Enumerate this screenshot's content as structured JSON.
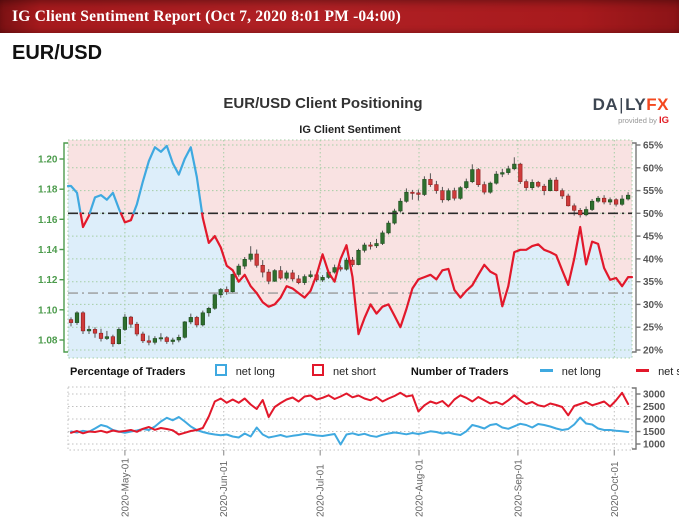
{
  "header": {
    "title": "IG Client Sentiment Report (Oct 7, 2020 8:01 PM -04:00)"
  },
  "instrument": "EUR/USD",
  "chart": {
    "title": "EUR/USD Client Positioning",
    "subtitle": "IG Client Sentiment"
  },
  "logo": {
    "part1": "DA",
    "bar": "|",
    "part2": "LY",
    "part3": "FX",
    "provided": "provided by",
    "ig": "IG"
  },
  "legend": {
    "group1_label": "Percentage of Traders",
    "net_long": "net long",
    "net_short": "net short",
    "group2_label": "Number of Traders",
    "net_long2": "net long",
    "net_short2": "net short"
  },
  "colors": {
    "header_bg": "#a8191c",
    "net_long_blue": "#3fa9e0",
    "net_short_red": "#e2182b",
    "candle_up": "#2e6f2e",
    "candle_down": "#cf3b3b",
    "bg_above": "#f9e2e2",
    "bg_below": "#ddeefa",
    "grid_green": "#a5cda5",
    "grid_gray": "#c0c0c0",
    "price_label_green": "#4c9b4c",
    "axis_gray": "#555555",
    "logo_orange": "#f4481e",
    "logo_dark": "#3d4652",
    "ig_red": "#e21d25"
  },
  "chart_data": [
    {
      "type": "candlestick+line",
      "title": "IG Client Sentiment",
      "x": {
        "labels": [
          "2020-May-01",
          "2020-Jun-01",
          "2020-Jul-01",
          "2020-Aug-01",
          "2020-Sep-01",
          "2020-Oct-01"
        ],
        "tick_indices": [
          9.0,
          25.5,
          41.6,
          58.1,
          74.6,
          90.7
        ]
      },
      "y_left": {
        "name": "EUR/USD price",
        "ticks": [
          "1.08",
          "1.10",
          "1.12",
          "1.14",
          "1.16",
          "1.18",
          "1.20"
        ]
      },
      "y_right": {
        "name": "Percentage of traders",
        "unit": "%",
        "range": [
          20,
          65
        ],
        "ticks": [
          20,
          25,
          30,
          35,
          40,
          45,
          50,
          55,
          60,
          65
        ]
      },
      "reference_lines": [
        {
          "value": 50,
          "color": "#2b2b2b",
          "name": "50-percent-level"
        },
        {
          "value": 32.5,
          "color": "#9a9a9a",
          "name": "current-sentiment-marker"
        }
      ],
      "background": {
        "above_line": "net-short majority shaded pink",
        "below_line": "net-long shaded blue"
      },
      "series": [
        {
          "name": "EUR/USD daily candles",
          "type": "candlestick",
          "ohlc": [
            [
              1.0935,
              1.095,
              1.089,
              1.0915
            ],
            [
              1.0915,
              1.099,
              1.09,
              1.098
            ],
            [
              1.098,
              1.099,
              1.084,
              1.086
            ],
            [
              1.086,
              1.0895,
              1.084,
              1.087
            ],
            [
              1.087,
              1.0885,
              1.0815,
              1.0845
            ],
            [
              1.0845,
              1.0875,
              1.079,
              1.081
            ],
            [
              1.081,
              1.086,
              1.08,
              1.0822
            ],
            [
              1.0822,
              1.0835,
              1.0755,
              1.0775
            ],
            [
              1.0775,
              1.0885,
              1.077,
              1.087
            ],
            [
              1.087,
              1.0972,
              1.086,
              1.0952
            ],
            [
              1.0952,
              1.096,
              1.088,
              1.0905
            ],
            [
              1.0905,
              1.092,
              1.0825,
              1.084
            ],
            [
              1.084,
              1.0855,
              1.078,
              1.0795
            ],
            [
              1.0795,
              1.083,
              1.0765,
              1.0785
            ],
            [
              1.0785,
              1.0825,
              1.077,
              1.081
            ],
            [
              1.081,
              1.0845,
              1.079,
              1.0815
            ],
            [
              1.0815,
              1.0825,
              1.0775,
              1.079
            ],
            [
              1.079,
              1.0815,
              1.077,
              1.08
            ],
            [
              1.08,
              1.0835,
              1.0785,
              1.0818
            ],
            [
              1.0818,
              1.0925,
              1.081,
              1.092
            ],
            [
              1.092,
              1.0975,
              1.0905,
              1.095
            ],
            [
              1.095,
              1.096,
              1.0885,
              1.09
            ],
            [
              1.09,
              1.0995,
              1.089,
              1.098
            ],
            [
              1.098,
              1.102,
              1.0955,
              1.101
            ],
            [
              1.101,
              1.111,
              1.1,
              1.11
            ],
            [
              1.11,
              1.1145,
              1.108,
              1.1135
            ],
            [
              1.1135,
              1.1155,
              1.11,
              1.112
            ],
            [
              1.112,
              1.124,
              1.1115,
              1.1235
            ],
            [
              1.1235,
              1.1305,
              1.122,
              1.129
            ],
            [
              1.129,
              1.135,
              1.127,
              1.1335
            ],
            [
              1.1335,
              1.1422,
              1.132,
              1.137
            ],
            [
              1.137,
              1.14,
              1.128,
              1.1295
            ],
            [
              1.1295,
              1.133,
              1.1215,
              1.125
            ],
            [
              1.125,
              1.127,
              1.117,
              1.119
            ],
            [
              1.119,
              1.127,
              1.1185,
              1.126
            ],
            [
              1.126,
              1.129,
              1.12,
              1.121
            ],
            [
              1.121,
              1.126,
              1.1195,
              1.1245
            ],
            [
              1.1245,
              1.1265,
              1.119,
              1.1205
            ],
            [
              1.1205,
              1.123,
              1.117,
              1.118
            ],
            [
              1.118,
              1.1235,
              1.1165,
              1.122
            ],
            [
              1.122,
              1.126,
              1.121,
              1.1232
            ],
            [
              1.1232,
              1.124,
              1.1185,
              1.1198
            ],
            [
              1.1198,
              1.123,
              1.1185,
              1.1215
            ],
            [
              1.1215,
              1.1265,
              1.1205,
              1.125
            ],
            [
              1.125,
              1.13,
              1.124,
              1.128
            ],
            [
              1.128,
              1.1295,
              1.1255,
              1.127
            ],
            [
              1.127,
              1.1345,
              1.126,
              1.133
            ],
            [
              1.133,
              1.135,
              1.1285,
              1.13
            ],
            [
              1.13,
              1.1405,
              1.1295,
              1.1395
            ],
            [
              1.1395,
              1.1445,
              1.138,
              1.143
            ],
            [
              1.143,
              1.145,
              1.14,
              1.1425
            ],
            [
              1.1425,
              1.147,
              1.141,
              1.144
            ],
            [
              1.144,
              1.1525,
              1.143,
              1.151
            ],
            [
              1.151,
              1.159,
              1.15,
              1.1575
            ],
            [
              1.1575,
              1.167,
              1.1565,
              1.1655
            ],
            [
              1.1655,
              1.174,
              1.1645,
              1.172
            ],
            [
              1.172,
              1.1805,
              1.171,
              1.178
            ],
            [
              1.178,
              1.1795,
              1.173,
              1.1775
            ],
            [
              1.1775,
              1.1797,
              1.1725,
              1.1765
            ],
            [
              1.1765,
              1.1885,
              1.1755,
              1.1865
            ],
            [
              1.1865,
              1.1905,
              1.1815,
              1.183
            ],
            [
              1.183,
              1.1855,
              1.177,
              1.179
            ],
            [
              1.179,
              1.1815,
              1.171,
              1.173
            ],
            [
              1.173,
              1.1805,
              1.172,
              1.179
            ],
            [
              1.179,
              1.181,
              1.1725,
              1.174
            ],
            [
              1.174,
              1.182,
              1.173,
              1.181
            ],
            [
              1.181,
              1.187,
              1.18,
              1.185
            ],
            [
              1.185,
              1.1965,
              1.184,
              1.193
            ],
            [
              1.193,
              1.194,
              1.1815,
              1.183
            ],
            [
              1.183,
              1.185,
              1.1765,
              1.178
            ],
            [
              1.178,
              1.185,
              1.177,
              1.184
            ],
            [
              1.184,
              1.192,
              1.183,
              1.19
            ],
            [
              1.19,
              1.1935,
              1.188,
              1.191
            ],
            [
              1.191,
              1.1955,
              1.1895,
              1.1935
            ],
            [
              1.1935,
              1.2011,
              1.1925,
              1.1966
            ],
            [
              1.1966,
              1.1975,
              1.1835,
              1.185
            ],
            [
              1.185,
              1.1865,
              1.179,
              1.181
            ],
            [
              1.181,
              1.1865,
              1.1795,
              1.1845
            ],
            [
              1.1845,
              1.1855,
              1.181,
              1.182
            ],
            [
              1.182,
              1.1835,
              1.176,
              1.179
            ],
            [
              1.179,
              1.1875,
              1.1785,
              1.186
            ],
            [
              1.186,
              1.188,
              1.1785,
              1.179
            ],
            [
              1.179,
              1.1805,
              1.1735,
              1.1755
            ],
            [
              1.1755,
              1.177,
              1.1685,
              1.169
            ],
            [
              1.169,
              1.1705,
              1.1625,
              1.166
            ],
            [
              1.166,
              1.1675,
              1.1612,
              1.163
            ],
            [
              1.163,
              1.1685,
              1.162,
              1.1665
            ],
            [
              1.1665,
              1.1735,
              1.1655,
              1.172
            ],
            [
              1.172,
              1.1755,
              1.171,
              1.174
            ],
            [
              1.174,
              1.176,
              1.17,
              1.1715
            ],
            [
              1.1715,
              1.1745,
              1.1695,
              1.173
            ],
            [
              1.173,
              1.174,
              1.1685,
              1.17
            ],
            [
              1.17,
              1.176,
              1.169,
              1.1735
            ],
            [
              1.1735,
              1.178,
              1.1725,
              1.176
            ]
          ]
        },
        {
          "name": "net long percentage of traders",
          "type": "line",
          "color_rule": "blue when >= 50, red when < 50",
          "values": [
            56,
            54.5,
            47,
            49.5,
            53.5,
            54,
            53,
            54.5,
            51,
            48,
            48.5,
            52,
            57,
            61.5,
            64.5,
            63.5,
            64.8,
            61,
            58.5,
            62,
            64.5,
            58,
            49,
            43.5,
            45,
            42.5,
            38.5,
            37.5,
            35,
            36.5,
            34,
            32.5,
            30.5,
            29.5,
            30,
            31.5,
            34,
            33.5,
            32.5,
            31.5,
            33,
            36.5,
            41,
            37,
            35,
            40,
            43,
            36,
            23.5,
            27,
            30,
            28,
            29.5,
            30,
            27.5,
            25,
            29,
            33.5,
            35.5,
            36,
            36.5,
            35.5,
            37.5,
            37.8,
            33.2,
            31.5,
            33,
            34.2,
            36.5,
            38.7,
            37.2,
            36.5,
            29.6,
            34,
            41.5,
            42,
            42,
            42.8,
            43.2,
            42,
            41.5,
            40.8,
            37.5,
            34.3,
            40,
            47,
            38.8,
            43.8,
            43.3,
            38,
            35.4,
            35.8,
            34,
            36
          ]
        }
      ]
    },
    {
      "type": "line",
      "name": "Number of Traders",
      "y_right": {
        "ticks": [
          1000,
          1500,
          2000,
          2500,
          3000
        ],
        "range": [
          840,
          3240
        ]
      },
      "series": [
        {
          "name": "net long",
          "color_key": "net_long_blue",
          "values": [
            1500,
            1460,
            1530,
            1490,
            1620,
            1760,
            1700,
            1560,
            1500,
            1450,
            1500,
            1540,
            1600,
            1560,
            1700,
            1900,
            2050,
            1950,
            2080,
            1900,
            1700,
            1560,
            1480,
            1420,
            1380,
            1350,
            1380,
            1300,
            1260,
            1420,
            1300,
            1660,
            1380,
            1260,
            1310,
            1360,
            1290,
            1330,
            1360,
            1410,
            1380,
            1340,
            1320,
            1360,
            1400,
            980,
            1380,
            1430,
            1360,
            1410,
            1330,
            1290,
            1370,
            1420,
            1460,
            1430,
            1390,
            1440,
            1400,
            1450,
            1510,
            1480,
            1420,
            1460,
            1400,
            1360,
            1510,
            1760,
            1700,
            1620,
            1760,
            1800,
            1660,
            1610,
            1710,
            1810,
            1760,
            1660,
            1800,
            1760,
            1700,
            1620,
            1560,
            1600,
            1780,
            2060,
            1820,
            1780,
            1620,
            1560,
            1560,
            1530,
            1510,
            1480
          ]
        },
        {
          "name": "net short",
          "color_key": "net_short_red",
          "values": [
            1450,
            1520,
            1430,
            1500,
            1480,
            1530,
            1460,
            1540,
            1490,
            1520,
            1560,
            1490,
            1610,
            1680,
            1570,
            1640,
            1600,
            1550,
            1380,
            1450,
            1520,
            1560,
            1640,
            2100,
            2700,
            2820,
            2650,
            2780,
            2650,
            2820,
            2580,
            2400,
            2760,
            2080,
            2480,
            2640,
            2780,
            2860,
            2700,
            2900,
            2940,
            2780,
            2850,
            2950,
            2800,
            2900,
            3020,
            2870,
            2940,
            2820,
            2750,
            2880,
            2700,
            2820,
            2920,
            3050,
            2900,
            2950,
            2300,
            2550,
            2700,
            2620,
            2720,
            2500,
            2780,
            2950,
            2850,
            2700,
            2880,
            2750,
            2620,
            2680,
            2580,
            2750,
            2950,
            2750,
            2600,
            2680,
            2550,
            2500,
            2620,
            2560,
            2480,
            2150,
            2520,
            2600,
            2680,
            2550,
            2620,
            2700,
            2500,
            2750,
            3050,
            2600
          ]
        }
      ]
    }
  ]
}
